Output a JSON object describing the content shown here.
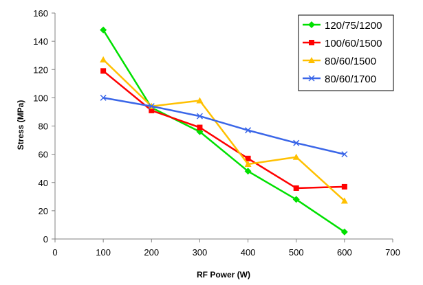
{
  "chart_data": {
    "type": "line",
    "title": "",
    "xlabel": "RF Power (W)",
    "ylabel": "Stress (MPa)",
    "xlim": [
      0,
      700
    ],
    "ylim": [
      0,
      160
    ],
    "xticks": [
      0,
      100,
      200,
      300,
      400,
      500,
      600,
      700
    ],
    "yticks": [
      0,
      20,
      40,
      60,
      80,
      100,
      120,
      140,
      160
    ],
    "grid": false,
    "legend_position": "top-right",
    "series": [
      {
        "name": "120/75/1200",
        "color": "#00e000",
        "marker": "diamond",
        "x": [
          100,
          200,
          300,
          400,
          500,
          600
        ],
        "y": [
          148,
          93,
          76,
          48,
          28,
          5
        ]
      },
      {
        "name": "100/60/1500",
        "color": "#ff0000",
        "marker": "square",
        "x": [
          100,
          200,
          300,
          400,
          500,
          600
        ],
        "y": [
          119,
          91,
          79,
          57,
          36,
          37
        ]
      },
      {
        "name": "80/60/1500",
        "color": "#ffc000",
        "marker": "triangle",
        "x": [
          100,
          200,
          300,
          400,
          500,
          600
        ],
        "y": [
          127,
          94,
          98,
          53,
          58,
          27
        ]
      },
      {
        "name": "80/60/1700",
        "color": "#3a66e8",
        "marker": "x",
        "x": [
          100,
          200,
          300,
          400,
          500,
          600
        ],
        "y": [
          100,
          94,
          87,
          77,
          68,
          60
        ]
      }
    ]
  }
}
